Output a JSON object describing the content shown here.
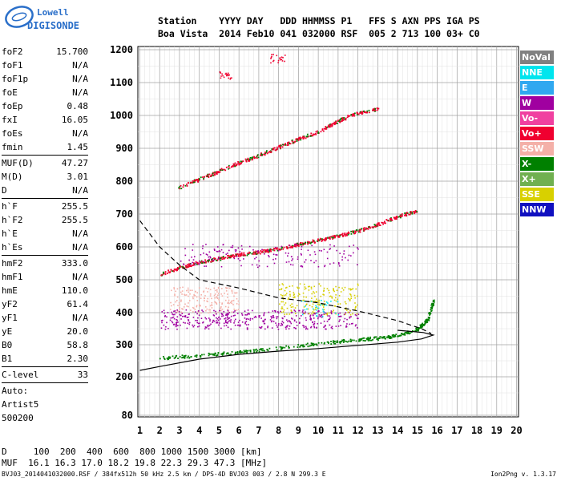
{
  "logo": {
    "line1": "Lowell",
    "line2": "DIGISONDE"
  },
  "header": {
    "row1": "Station    YYYY DAY   DDD HHMMSS P1   FFS S AXN PPS IGA PS",
    "row2": "Boa Vista  2014 Feb10 041 032000 RSF  005 2 713 100 03+ C0"
  },
  "params": [
    {
      "k": "foF2",
      "v": "15.700"
    },
    {
      "k": "foF1",
      "v": "N/A"
    },
    {
      "k": "foF1p",
      "v": "N/A"
    },
    {
      "k": "foE",
      "v": "N/A"
    },
    {
      "k": "foEp",
      "v": "0.48"
    },
    {
      "k": "fxI",
      "v": "16.05"
    },
    {
      "k": "foEs",
      "v": "N/A"
    },
    {
      "k": "fmin",
      "v": "1.45"
    },
    {
      "k": "MUF(D)",
      "v": "47.27"
    },
    {
      "k": "M(D)",
      "v": "3.01"
    },
    {
      "k": "D",
      "v": "N/A"
    },
    {
      "k": "h`F",
      "v": "255.5"
    },
    {
      "k": "h`F2",
      "v": "255.5"
    },
    {
      "k": "h`E",
      "v": "N/A"
    },
    {
      "k": "h`Es",
      "v": "N/A"
    },
    {
      "k": "hmF2",
      "v": "333.0"
    },
    {
      "k": "hmF1",
      "v": "N/A"
    },
    {
      "k": "hmE",
      "v": "110.0"
    },
    {
      "k": "yF2",
      "v": "61.4"
    },
    {
      "k": "yF1",
      "v": "N/A"
    },
    {
      "k": "yE",
      "v": "20.0"
    },
    {
      "k": "B0",
      "v": "58.8"
    },
    {
      "k": "B1",
      "v": "2.30"
    },
    {
      "k": "C-level",
      "v": "33"
    }
  ],
  "auto": {
    "l1": "Auto:",
    "l2": "Artist5",
    "l3": "500200"
  },
  "legend": [
    {
      "label": "NoVal",
      "color": "#808080"
    },
    {
      "label": "NNE",
      "color": "#00e5ee"
    },
    {
      "label": "E",
      "color": "#30a8f0"
    },
    {
      "label": "W",
      "color": "#a000a0"
    },
    {
      "label": "Vo-",
      "color": "#f040a0"
    },
    {
      "label": "Vo+",
      "color": "#f00030"
    },
    {
      "label": "SSW",
      "color": "#f4b0a8"
    },
    {
      "label": "X-",
      "color": "#008000"
    },
    {
      "label": "X+",
      "color": "#70b050"
    },
    {
      "label": "SSE",
      "color": "#d8d000"
    },
    {
      "label": "NNW",
      "color": "#1010c0"
    }
  ],
  "bottom": {
    "d_row": "D     100  200  400  600  800 1000 1500 3000 [km]",
    "muf_row": "MUF  16.1 16.3 17.0 18.2 19.8 22.3 29.3 47.3 [MHz]"
  },
  "footer": {
    "left": "BVJ03_2014041032000.RSF / 384fx512h 50 kHz 2.5 km / DPS-4D BVJ03 003 / 2.8 N 299.3 E",
    "right": "Ion2Png v. 1.3.17"
  },
  "chart_data": {
    "type": "scatter",
    "xlim": [
      0.9,
      20.1
    ],
    "ylim": [
      80,
      1200
    ],
    "x_ticks": [
      "1",
      "2",
      "3",
      "4",
      "5",
      "6",
      "7",
      "8",
      "9",
      "10",
      "11",
      "12",
      "13",
      "14",
      "15",
      "16",
      "17",
      "18",
      "19",
      "20"
    ],
    "y_ticks": [
      "80",
      "200",
      "300",
      "400",
      "500",
      "600",
      "700",
      "800",
      "900",
      "1000",
      "1100",
      "1200"
    ],
    "grid": true,
    "series": [
      {
        "name": "Vo+",
        "color": "#f00030",
        "points": [
          [
            2.9,
            780
          ],
          [
            4,
            808
          ],
          [
            5,
            832
          ],
          [
            6,
            858
          ],
          [
            7,
            880
          ],
          [
            8,
            905
          ],
          [
            9,
            930
          ],
          [
            10,
            952
          ],
          [
            11,
            985
          ],
          [
            12,
            1010
          ],
          [
            13,
            1020
          ]
        ]
      },
      {
        "name": "Vo+",
        "color": "#f00030",
        "points": [
          [
            2,
            518
          ],
          [
            3,
            538
          ],
          [
            4,
            555
          ],
          [
            5,
            566
          ],
          [
            6,
            578
          ],
          [
            7,
            586
          ],
          [
            8,
            595
          ],
          [
            9,
            610
          ],
          [
            10,
            622
          ],
          [
            11,
            635
          ],
          [
            12,
            650
          ],
          [
            13,
            670
          ],
          [
            14,
            694
          ],
          [
            15,
            712
          ]
        ]
      },
      {
        "name": "X-",
        "color": "#008000",
        "points": [
          [
            2,
            260
          ],
          [
            4,
            268
          ],
          [
            6,
            278
          ],
          [
            8,
            292
          ],
          [
            10,
            305
          ],
          [
            12,
            318
          ],
          [
            13,
            322
          ],
          [
            14,
            330
          ],
          [
            15,
            350
          ],
          [
            15.5,
            380
          ],
          [
            15.8,
            440
          ]
        ]
      }
    ],
    "lines": [
      {
        "style": "dashed",
        "points": [
          [
            1,
            680
          ],
          [
            2,
            600
          ],
          [
            3,
            545
          ],
          [
            4,
            500
          ],
          [
            6,
            475
          ],
          [
            8,
            445
          ],
          [
            10,
            430
          ],
          [
            12,
            405
          ],
          [
            14,
            375
          ],
          [
            15.2,
            350
          ],
          [
            15.7,
            335
          ]
        ]
      },
      {
        "style": "solid",
        "points": [
          [
            1,
            220
          ],
          [
            2,
            232
          ],
          [
            4,
            255
          ],
          [
            6,
            270
          ],
          [
            8,
            280
          ],
          [
            10,
            288
          ],
          [
            12,
            298
          ],
          [
            14,
            308
          ],
          [
            15.2,
            318
          ],
          [
            15.8,
            330
          ],
          [
            15.3,
            338
          ],
          [
            14,
            345
          ]
        ]
      }
    ]
  }
}
